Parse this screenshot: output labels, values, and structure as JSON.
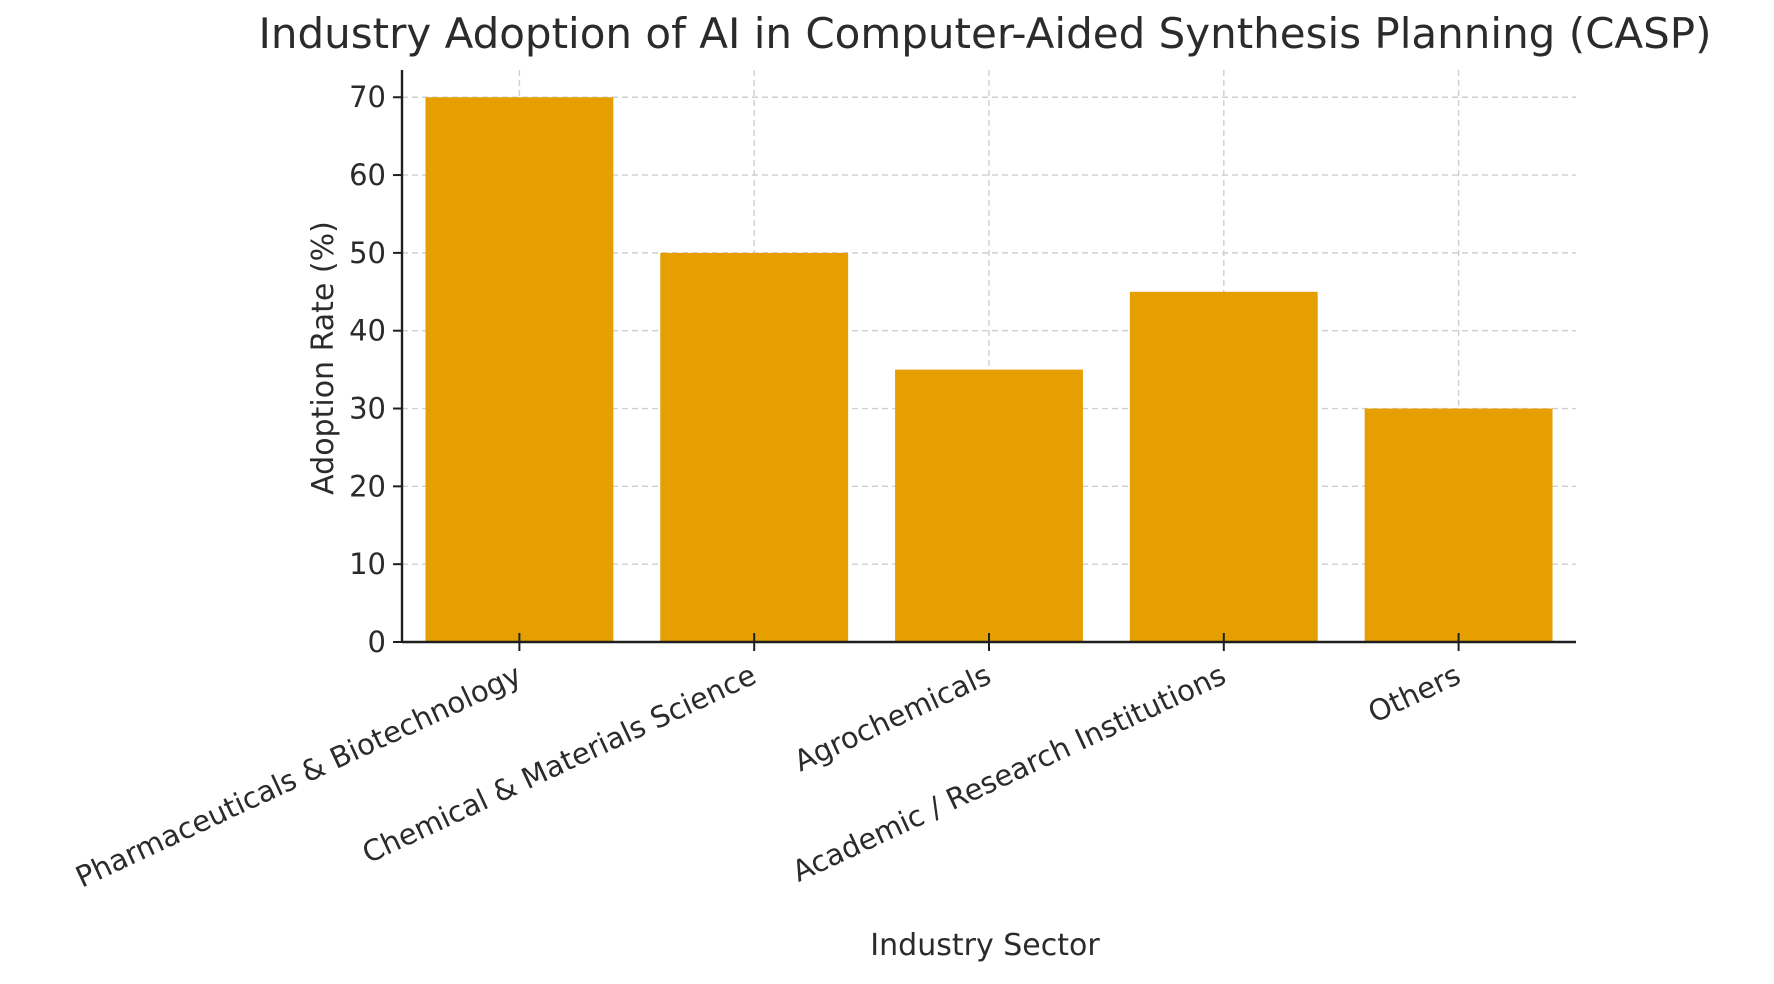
{
  "chart_data": {
    "type": "bar",
    "title": "Industry Adoption of AI in Computer-Aided Synthesis Planning (CASP)",
    "xlabel": "Industry Sector",
    "ylabel": "Adoption Rate (%)",
    "categories": [
      "Pharmaceuticals & Biotechnology",
      "Chemical & Materials Science",
      "Agrochemicals",
      "Academic / Research Institutions",
      "Others"
    ],
    "values": [
      70,
      50,
      35,
      45,
      30
    ],
    "ylim": [
      0,
      73.5
    ],
    "yticks": [
      0,
      10,
      20,
      30,
      40,
      50,
      60,
      70
    ],
    "grid": true,
    "bar_color": "#E69F00"
  }
}
